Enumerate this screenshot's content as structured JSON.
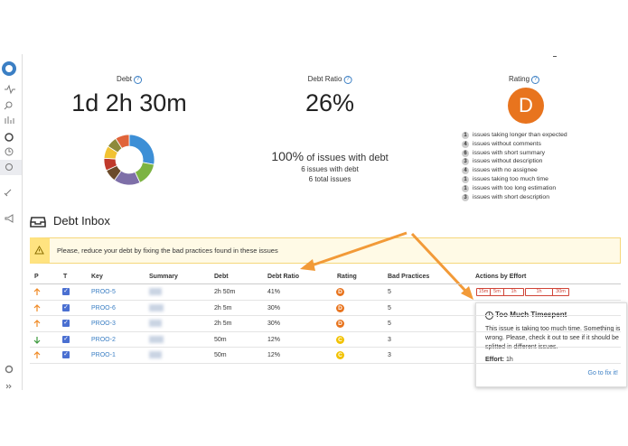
{
  "debt": {
    "label": "Debt",
    "value": "1d 2h 30m",
    "breakdown": {
      "values": [
        28,
        15,
        17,
        8,
        8,
        8,
        7,
        9
      ],
      "colors": [
        "#3d8fd6",
        "#7cb342",
        "#7e6fa8",
        "#6b4a2a",
        "#c0392b",
        "#f1c232",
        "#8d8a3a",
        "#e0643a"
      ]
    }
  },
  "debt_ratio": {
    "label": "Debt Ratio",
    "value": "26%",
    "summary": {
      "percent": "100%",
      "text": "of issues with debt",
      "issues_with_debt": "6 issues with debt",
      "total_issues": "6 total issues"
    }
  },
  "rating": {
    "label": "Rating",
    "value": "D",
    "practices": [
      {
        "count": 1,
        "text": "issues taking longer than expected"
      },
      {
        "count": 4,
        "text": "issues without comments"
      },
      {
        "count": 6,
        "text": "issues with short summary"
      },
      {
        "count": 3,
        "text": "issues without description"
      },
      {
        "count": 4,
        "text": "issues with no assignee"
      },
      {
        "count": 1,
        "text": "issues taking too much time"
      },
      {
        "count": 1,
        "text": "issues with too long estimation"
      },
      {
        "count": 3,
        "text": "issues with short description"
      }
    ]
  },
  "inbox": {
    "title": "Debt Inbox",
    "warning": "Please, reduce your debt by fixing the bad practices found in these issues",
    "table": {
      "headers": [
        "P",
        "T",
        "Key",
        "Summary",
        "Debt",
        "Debt Ratio",
        "Rating",
        "Bad Practices",
        "Actions by Effort"
      ],
      "rows": [
        {
          "key": "PROO-5",
          "debt": "2h 50m",
          "debt_ratio": "41%",
          "rating": "D",
          "bad_practices": 5
        },
        {
          "key": "PROO-6",
          "debt": "2h 5m",
          "debt_ratio": "30%",
          "rating": "D",
          "bad_practices": 5
        },
        {
          "key": "PROO-3",
          "debt": "2h 5m",
          "debt_ratio": "30%",
          "rating": "D",
          "bad_practices": 5
        },
        {
          "key": "PROO-2",
          "debt": "50m",
          "debt_ratio": "12%",
          "rating": "C",
          "bad_practices": 3
        },
        {
          "key": "PROO-1",
          "debt": "50m",
          "debt_ratio": "12%",
          "rating": "C",
          "bad_practices": 3
        }
      ]
    },
    "actions": [
      "15m",
      "5m",
      "1h",
      "1h",
      "30m"
    ]
  },
  "popup": {
    "title": "Too Much Timespent",
    "body": "This issue is taking too much time. Something is wrong. Please, check it out to see if it should be splitted in different issues.",
    "effort_label": "Effort:",
    "effort": "1h",
    "link": "Go to fix it!"
  }
}
